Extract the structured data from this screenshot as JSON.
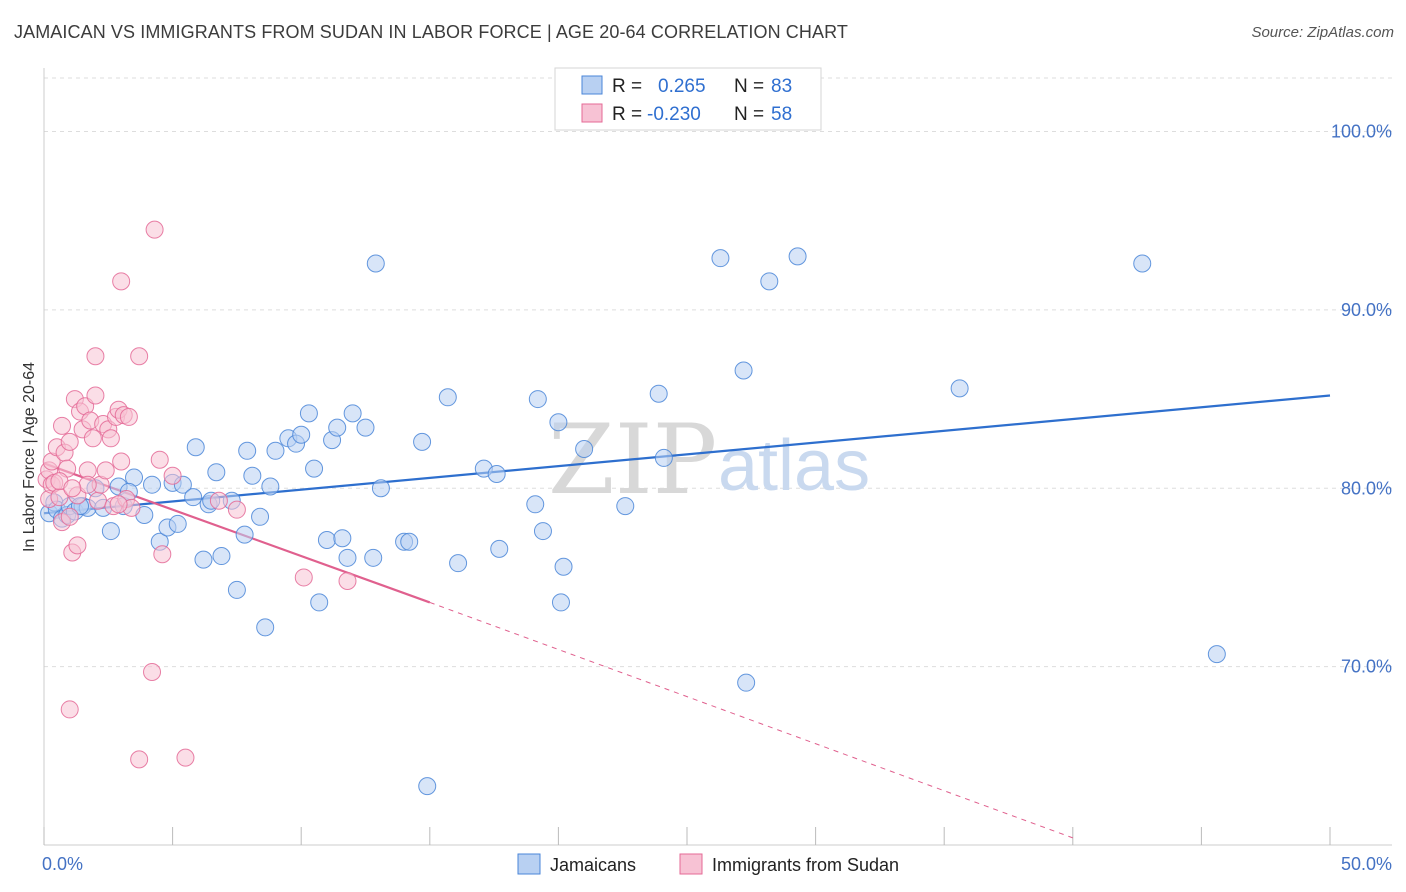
{
  "title": "JAMAICAN VS IMMIGRANTS FROM SUDAN IN LABOR FORCE | AGE 20-64 CORRELATION CHART",
  "source": "Source: ZipAtlas.com",
  "watermark": {
    "zip": "ZIP",
    "atlas": "atlas"
  },
  "colors": {
    "blue": "#4a86d8",
    "blue_fill": "#b8d0f2",
    "blue_line": "#2e6fce",
    "pink": "#e46a96",
    "pink_fill": "#f7c2d4",
    "pink_line": "#e0608e",
    "grid": "#dddddd",
    "tick_text": "#4472c4"
  },
  "legend": {
    "rows": [
      {
        "r_label": "R =",
        "r_value": "0.265",
        "n_label": "N =",
        "n_value": "83"
      },
      {
        "r_label": "R =",
        "r_value": "-0.230",
        "n_label": "N =",
        "n_value": "58"
      }
    ]
  },
  "chart_data": {
    "type": "scatter",
    "title": "JAMAICAN VS IMMIGRANTS FROM SUDAN IN LABOR FORCE | AGE 20-64 CORRELATION CHART",
    "xlabel": "",
    "ylabel": "In Labor Force | Age 20-64",
    "xlim": [
      0,
      50
    ],
    "ylim": [
      60,
      103
    ],
    "x_tick_labels": [
      {
        "value": 0,
        "label": "0.0%"
      },
      {
        "value": 50,
        "label": "50.0%"
      }
    ],
    "y_ticks": [
      {
        "value": 70,
        "label": "70.0%"
      },
      {
        "value": 80,
        "label": "80.0%"
      },
      {
        "value": 90,
        "label": "90.0%"
      },
      {
        "value": 100,
        "label": "100.0%"
      }
    ],
    "grid": true,
    "legend_position": "top-center",
    "series": [
      {
        "name": "Jamaicans",
        "R": 0.265,
        "N": 83,
        "trend": {
          "x0": 0,
          "y0": 78.6,
          "x1": 50,
          "y1": 85.2,
          "dashed_from": null
        },
        "points": [
          [
            0.2,
            78.6
          ],
          [
            0.4,
            79.2
          ],
          [
            0.5,
            78.8
          ],
          [
            0.7,
            78.3
          ],
          [
            0.9,
            78.5
          ],
          [
            1.0,
            79.0
          ],
          [
            1.2,
            78.7
          ],
          [
            1.5,
            79.0
          ],
          [
            1.7,
            78.9
          ],
          [
            2.0,
            80.0
          ],
          [
            2.3,
            78.9
          ],
          [
            2.6,
            77.6
          ],
          [
            2.9,
            80.1
          ],
          [
            3.1,
            79.0
          ],
          [
            3.5,
            80.6
          ],
          [
            3.9,
            78.5
          ],
          [
            4.2,
            80.2
          ],
          [
            4.5,
            77.0
          ],
          [
            4.8,
            77.8
          ],
          [
            5.0,
            80.3
          ],
          [
            5.2,
            78.0
          ],
          [
            5.4,
            80.2
          ],
          [
            5.8,
            79.5
          ],
          [
            5.9,
            82.3
          ],
          [
            6.2,
            76.0
          ],
          [
            6.4,
            79.1
          ],
          [
            6.5,
            79.3
          ],
          [
            6.7,
            80.9
          ],
          [
            6.9,
            76.2
          ],
          [
            7.3,
            79.3
          ],
          [
            7.5,
            74.3
          ],
          [
            7.8,
            77.4
          ],
          [
            7.9,
            82.1
          ],
          [
            8.1,
            80.7
          ],
          [
            8.4,
            78.4
          ],
          [
            8.6,
            72.2
          ],
          [
            8.8,
            80.1
          ],
          [
            9.0,
            82.1
          ],
          [
            9.5,
            82.8
          ],
          [
            9.8,
            82.5
          ],
          [
            10.0,
            83.0
          ],
          [
            10.3,
            84.2
          ],
          [
            10.5,
            81.1
          ],
          [
            10.7,
            73.6
          ],
          [
            11.0,
            77.1
          ],
          [
            11.2,
            82.7
          ],
          [
            11.4,
            83.4
          ],
          [
            11.6,
            77.2
          ],
          [
            11.8,
            76.1
          ],
          [
            12.0,
            84.2
          ],
          [
            12.5,
            83.4
          ],
          [
            12.8,
            76.1
          ],
          [
            12.9,
            92.6
          ],
          [
            13.1,
            80.0
          ],
          [
            14.0,
            77.0
          ],
          [
            14.2,
            77.0
          ],
          [
            14.7,
            82.6
          ],
          [
            15.7,
            85.1
          ],
          [
            16.1,
            75.8
          ],
          [
            17.1,
            81.1
          ],
          [
            17.6,
            80.8
          ],
          [
            17.7,
            76.6
          ],
          [
            19.1,
            79.1
          ],
          [
            19.2,
            85.0
          ],
          [
            19.4,
            77.6
          ],
          [
            20.0,
            83.7
          ],
          [
            20.2,
            75.6
          ],
          [
            20.1,
            73.6
          ],
          [
            21.0,
            82.2
          ],
          [
            22.6,
            79.0
          ],
          [
            23.9,
            85.3
          ],
          [
            24.1,
            81.7
          ],
          [
            26.3,
            92.9
          ],
          [
            27.2,
            86.6
          ],
          [
            27.3,
            69.1
          ],
          [
            28.2,
            91.6
          ],
          [
            29.3,
            93.0
          ],
          [
            35.6,
            85.6
          ],
          [
            42.7,
            92.6
          ],
          [
            45.6,
            70.7
          ],
          [
            14.9,
            63.3
          ],
          [
            1.4,
            79.0
          ],
          [
            3.3,
            79.8
          ]
        ]
      },
      {
        "name": "Immigrants from Sudan",
        "R": -0.23,
        "N": 58,
        "trend": {
          "x0": 0,
          "y0": 81.4,
          "x1": 15,
          "y1": 73.6,
          "dashed_to_x": 40,
          "dashed_to_y": 60.4
        },
        "points": [
          [
            0.1,
            80.5
          ],
          [
            0.2,
            81.0
          ],
          [
            0.2,
            79.4
          ],
          [
            0.3,
            80.2
          ],
          [
            0.3,
            81.5
          ],
          [
            0.4,
            80.3
          ],
          [
            0.5,
            82.3
          ],
          [
            0.6,
            79.5
          ],
          [
            0.7,
            83.5
          ],
          [
            0.7,
            78.1
          ],
          [
            0.8,
            82.0
          ],
          [
            0.9,
            81.1
          ],
          [
            1.0,
            82.6
          ],
          [
            1.0,
            78.4
          ],
          [
            1.1,
            76.4
          ],
          [
            1.2,
            85.0
          ],
          [
            1.3,
            79.6
          ],
          [
            1.3,
            76.8
          ],
          [
            1.4,
            84.3
          ],
          [
            1.5,
            83.3
          ],
          [
            1.6,
            84.6
          ],
          [
            1.7,
            81.0
          ],
          [
            1.8,
            83.8
          ],
          [
            1.9,
            82.8
          ],
          [
            2.0,
            85.2
          ],
          [
            2.1,
            79.3
          ],
          [
            2.2,
            80.2
          ],
          [
            2.3,
            83.6
          ],
          [
            2.4,
            81.0
          ],
          [
            2.5,
            83.3
          ],
          [
            2.6,
            82.8
          ],
          [
            2.7,
            79.0
          ],
          [
            2.8,
            84.0
          ],
          [
            2.9,
            84.4
          ],
          [
            3.0,
            81.5
          ],
          [
            3.1,
            84.1
          ],
          [
            3.2,
            79.4
          ],
          [
            3.3,
            84.0
          ],
          [
            3.4,
            78.9
          ],
          [
            2.0,
            87.4
          ],
          [
            3.7,
            87.4
          ],
          [
            3.0,
            91.6
          ],
          [
            4.3,
            94.5
          ],
          [
            4.5,
            81.6
          ],
          [
            4.6,
            76.3
          ],
          [
            5.0,
            80.7
          ],
          [
            6.8,
            79.3
          ],
          [
            7.5,
            78.8
          ],
          [
            1.0,
            67.6
          ],
          [
            4.2,
            69.7
          ],
          [
            3.7,
            64.8
          ],
          [
            5.5,
            64.9
          ],
          [
            10.1,
            75.0
          ],
          [
            11.8,
            74.8
          ],
          [
            1.7,
            80.2
          ],
          [
            0.6,
            80.4
          ],
          [
            2.9,
            79.1
          ],
          [
            1.1,
            80.0
          ]
        ]
      }
    ]
  }
}
